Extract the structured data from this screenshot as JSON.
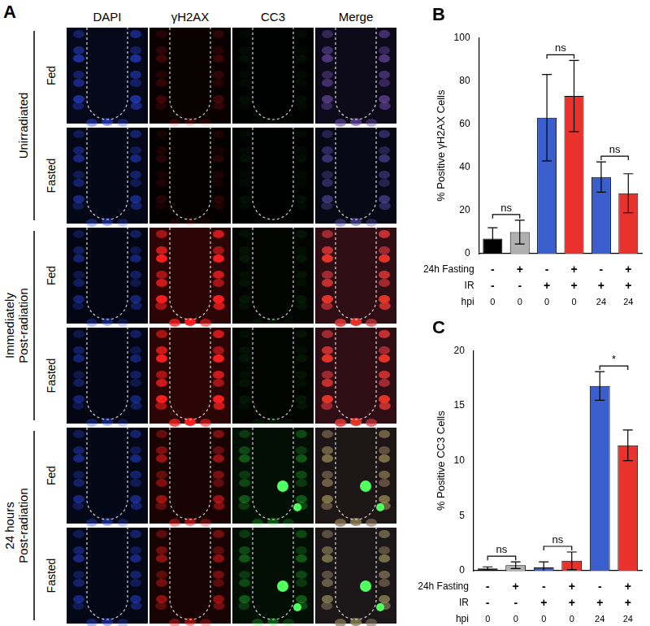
{
  "panel_a": {
    "title": "A",
    "columns": [
      "DAPI",
      "γH2AX",
      "CC3",
      "Merge"
    ],
    "groups": [
      {
        "label": [
          "Unirradiated"
        ],
        "rows": [
          "Fed",
          "Fasted"
        ]
      },
      {
        "label": [
          "Immediately",
          "Post-radiation"
        ],
        "rows": [
          "Fed",
          "Fasted"
        ]
      },
      {
        "label": [
          "24 hours",
          "Post-radiation"
        ],
        "rows": [
          "Fed",
          "Fasted"
        ]
      }
    ]
  },
  "chart_data": [
    {
      "type": "bar",
      "title": "B",
      "y_label": "% Positive γH2AX Cells",
      "categories": [
        null,
        null,
        null,
        null,
        null,
        null
      ],
      "values": [
        7,
        10,
        63,
        73,
        35.5,
        28
      ],
      "errors": [
        5,
        5.5,
        20,
        16.5,
        7,
        9
      ],
      "colors": [
        "#000000",
        "#b0b0b0",
        "#3a5fcd",
        "#e8322b",
        "#3a5fcd",
        "#e8322b"
      ],
      "ylim": [
        0,
        100
      ],
      "yticks": [
        0,
        20,
        40,
        60,
        80,
        100
      ],
      "grid": false,
      "tick_labels": "y",
      "annotations": [
        "ns",
        "ns",
        "ns"
      ],
      "conditions": [
        {
          "name": "24h Fasting",
          "values": [
            "-",
            "+",
            "-",
            "+",
            "-",
            "+"
          ]
        },
        {
          "name": "IR",
          "values": [
            "-",
            "-",
            "+",
            "+",
            "+",
            "+"
          ]
        },
        {
          "name": "hpi",
          "values": [
            0,
            0,
            0,
            0,
            24,
            24
          ]
        }
      ]
    },
    {
      "type": "bar",
      "title": "C",
      "y_label": "% Positive CC3 Cells",
      "categories": [
        null,
        null,
        null,
        null,
        null,
        null
      ],
      "values": [
        0.2,
        0.5,
        0.3,
        0.9,
        16.8,
        11.4
      ],
      "errors": [
        0.15,
        0.3,
        0.5,
        0.8,
        1.3,
        1.4
      ],
      "colors": [
        "#000000",
        "#b0b0b0",
        "#3a5fcd",
        "#e8322b",
        "#3a5fcd",
        "#e8322b"
      ],
      "ylim": [
        0,
        20
      ],
      "yticks": [
        0,
        5,
        10,
        15,
        20
      ],
      "grid": false,
      "tick_labels": "y",
      "annotations": [
        "ns",
        "ns",
        "*"
      ],
      "conditions": [
        {
          "name": "24h Fasting",
          "values": [
            "-",
            "+",
            "-",
            "+",
            "-",
            "+"
          ]
        },
        {
          "name": "IR",
          "values": [
            "-",
            "-",
            "+",
            "+",
            "+",
            "+"
          ]
        },
        {
          "name": "hpi",
          "values": [
            0,
            0,
            0,
            0,
            24,
            24
          ]
        }
      ]
    }
  ]
}
